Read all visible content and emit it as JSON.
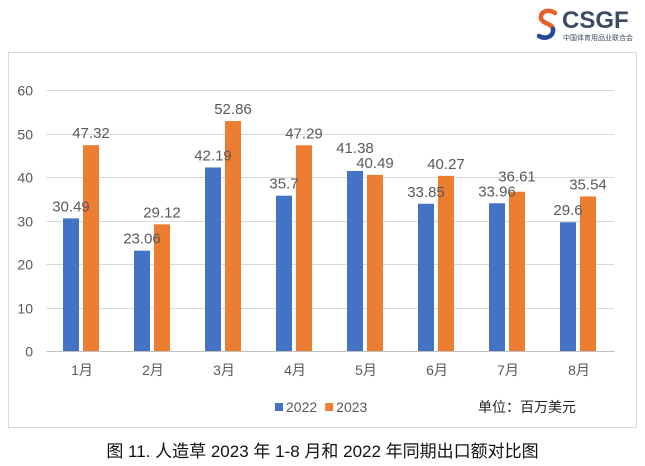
{
  "logo": {
    "icon": "csgf-swirl-icon",
    "wordmark": "CSGF",
    "subtitle": "中国体育用品业联合会",
    "colors": {
      "swirl_top": "#E5602A",
      "swirl_bottom": "#27479A",
      "text": "#3D4A63"
    }
  },
  "chart_data": {
    "type": "bar",
    "categories": [
      "1月",
      "2月",
      "3月",
      "4月",
      "5月",
      "6月",
      "7月",
      "8月"
    ],
    "series": [
      {
        "name": "2022",
        "color": "#4472C4",
        "values": [
          30.49,
          23.06,
          42.19,
          35.7,
          41.38,
          33.85,
          33.96,
          29.6
        ]
      },
      {
        "name": "2023",
        "color": "#ED7D31",
        "values": [
          47.32,
          29.12,
          52.86,
          47.29,
          40.49,
          40.27,
          36.61,
          35.54
        ]
      }
    ],
    "ylim": [
      0,
      60
    ],
    "yticks": [
      0,
      10,
      20,
      30,
      40,
      50,
      60
    ],
    "grid": true,
    "data_labels": true,
    "legend": "bottom",
    "unit_label": "单位：百万美元"
  },
  "figure": {
    "caption": "图 11. 人造草 2023 年 1-8 月和 2022 年同期出口额对比图"
  }
}
